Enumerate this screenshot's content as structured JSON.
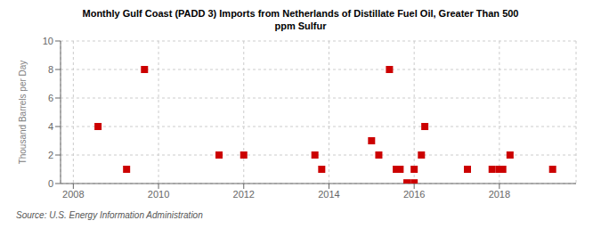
{
  "chart_data": {
    "type": "scatter",
    "title": "Monthly Gulf Coast (PADD 3) Imports from Netherlands of Distillate Fuel Oil, Greater Than 500\nppm Sulfur",
    "ylabel": "Thousand Barrels per Day",
    "source": "Source: U.S. Energy Information Administration",
    "x": [
      2008.58,
      2009.25,
      2009.67,
      2011.42,
      2012.0,
      2013.67,
      2013.83,
      2015.0,
      2015.17,
      2015.42,
      2015.58,
      2015.67,
      2015.83,
      2016.0,
      2016.0,
      2016.17,
      2016.25,
      2017.25,
      2017.83,
      2018.0,
      2018.08,
      2018.25,
      2019.25
    ],
    "values": [
      4.0,
      1.0,
      8.0,
      2.0,
      2.0,
      2.0,
      1.0,
      3.0,
      2.0,
      8.0,
      1.0,
      1.0,
      0.05,
      1.0,
      0.05,
      2.0,
      4.0,
      1.0,
      1.0,
      1.0,
      1.0,
      2.0,
      1.0
    ],
    "xlim": [
      2007.7,
      2019.8
    ],
    "ylim": [
      0,
      10
    ],
    "xticks": [
      2008,
      2010,
      2012,
      2014,
      2016,
      2018
    ],
    "yticks": [
      0,
      2,
      4,
      6,
      8,
      10
    ],
    "grid": true,
    "color": "#cc0000",
    "marker": "square"
  }
}
